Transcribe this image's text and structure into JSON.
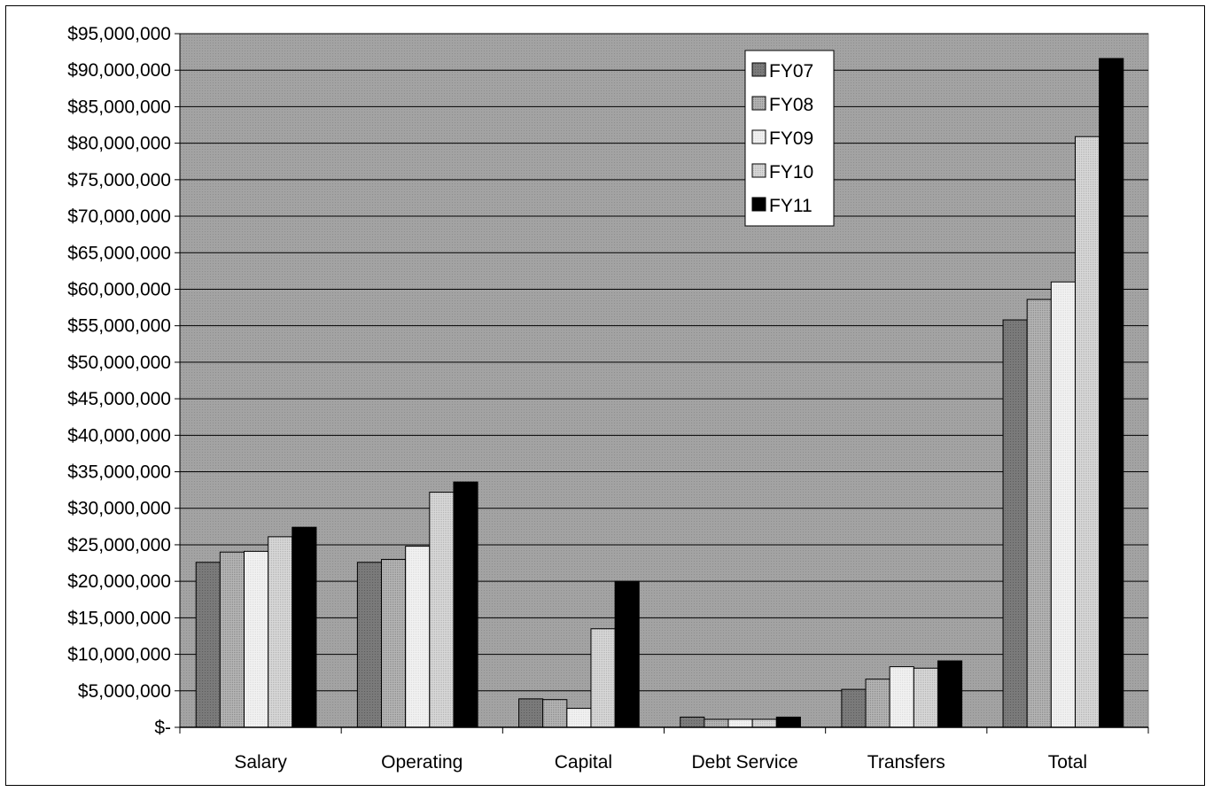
{
  "chart_data": {
    "type": "bar",
    "title": "",
    "xlabel": "",
    "ylabel": "",
    "categories": [
      "Salary",
      "Operating",
      "Capital",
      "Debt Service",
      "Transfers",
      "Total"
    ],
    "series": [
      {
        "name": "FY07",
        "values": [
          22600000,
          22600000,
          3900000,
          1400000,
          5200000,
          55800000
        ],
        "color": "#7f7f7f"
      },
      {
        "name": "FY08",
        "values": [
          24000000,
          23000000,
          3800000,
          1100000,
          6600000,
          58600000
        ],
        "color": "#a6a6a6"
      },
      {
        "name": "FY09",
        "values": [
          24100000,
          24800000,
          2600000,
          1100000,
          8300000,
          61000000
        ],
        "color": "#ececec"
      },
      {
        "name": "FY10",
        "values": [
          26100000,
          32200000,
          13500000,
          1100000,
          8100000,
          80900000
        ],
        "color": "#cfcfcf"
      },
      {
        "name": "FY11",
        "values": [
          27400000,
          33600000,
          20000000,
          1400000,
          9100000,
          91600000
        ],
        "color": "#000000"
      }
    ],
    "ylim": [
      0,
      95000000
    ],
    "yticks": [
      0,
      5000000,
      10000000,
      15000000,
      20000000,
      25000000,
      30000000,
      35000000,
      40000000,
      45000000,
      50000000,
      55000000,
      60000000,
      65000000,
      70000000,
      75000000,
      80000000,
      85000000,
      90000000,
      95000000
    ],
    "ytick_labels": [
      "$-",
      "$5,000,000",
      "$10,000,000",
      "$15,000,000",
      "$20,000,000",
      "$25,000,000",
      "$30,000,000",
      "$35,000,000",
      "$40,000,000",
      "$45,000,000",
      "$50,000,000",
      "$55,000,000",
      "$60,000,000",
      "$65,000,000",
      "$70,000,000",
      "$75,000,000",
      "$80,000,000",
      "$85,000,000",
      "$90,000,000",
      "$95,000,000"
    ],
    "grid": true,
    "legend_position": "top-right",
    "plot_background": "#a0a0a0"
  }
}
